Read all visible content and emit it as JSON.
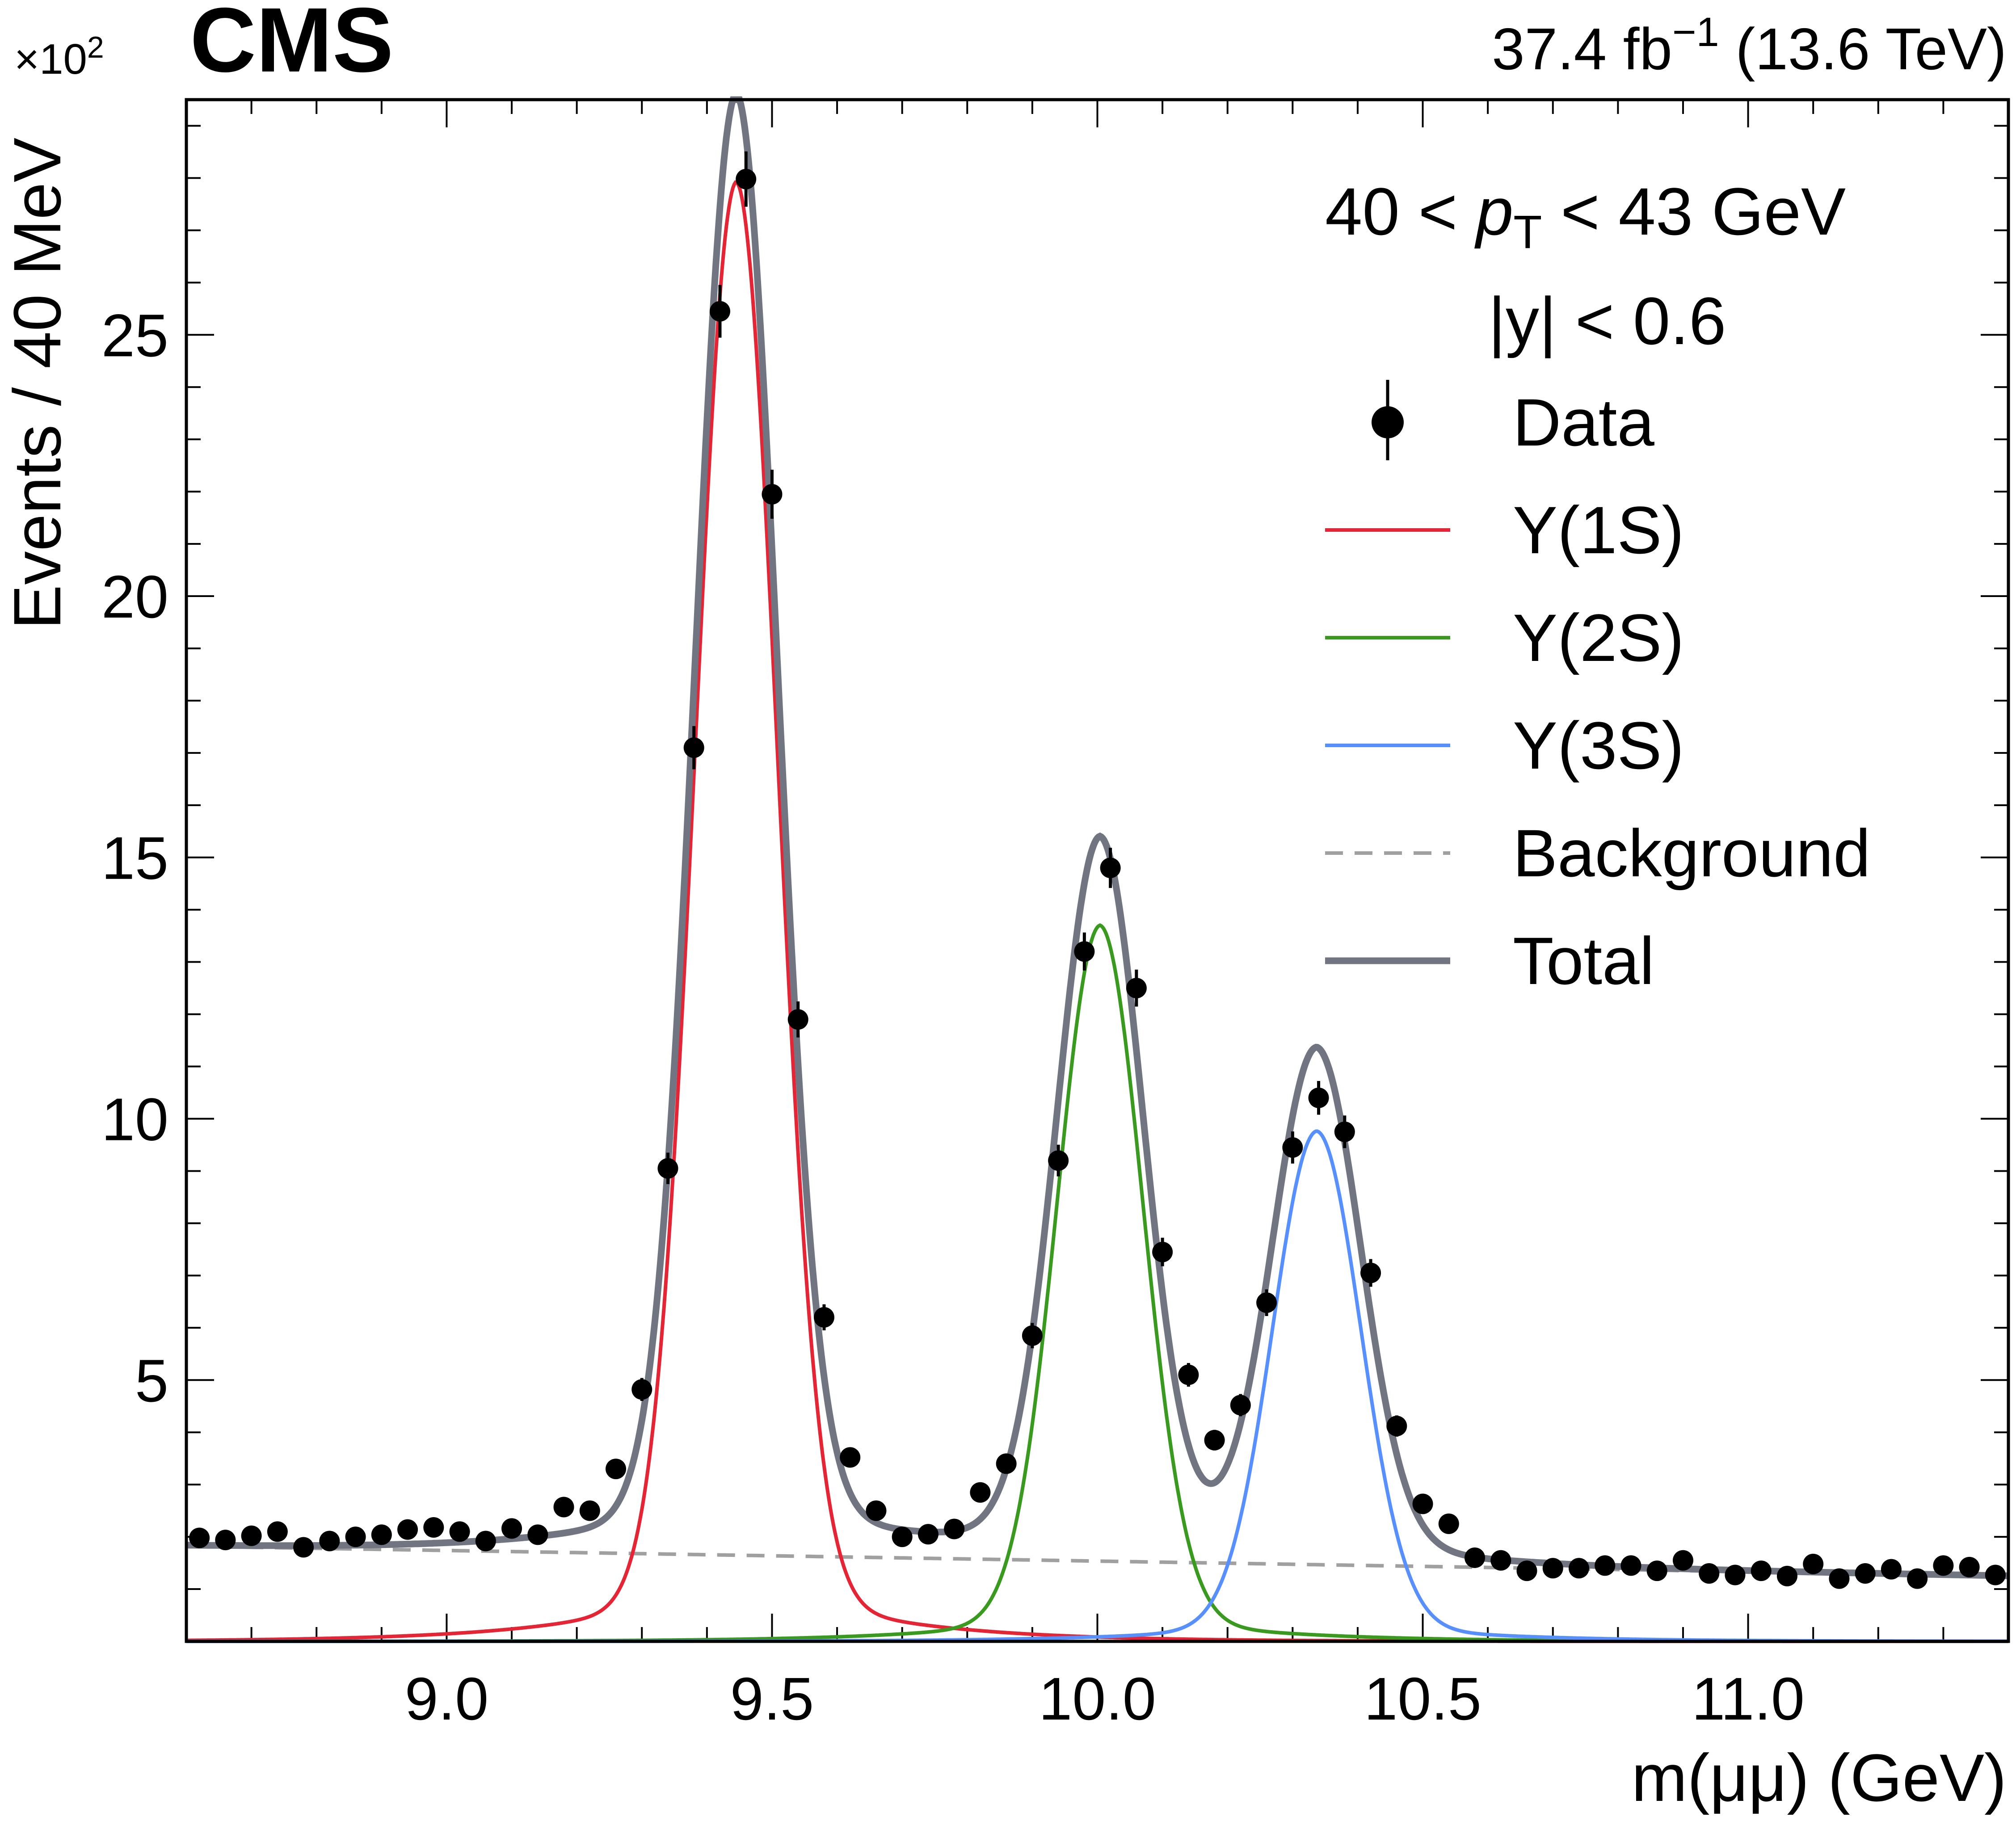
{
  "chart_data": {
    "type": "line",
    "experiment": "CMS",
    "lumi_label": "37.4 fb",
    "lumi_exp": "−1",
    "energy_label": "(13.6 TeV)",
    "multiplier_label": "×10",
    "multiplier_exp": "2",
    "xlabel": "m(μμ) (GeV)",
    "ylabel": "Events / 40 MeV",
    "xlim": [
      8.6,
      11.4
    ],
    "ylim": [
      0,
      29.5
    ],
    "xticks": [
      9.0,
      9.5,
      10.0,
      10.5,
      11.0
    ],
    "xtick_labels": [
      "9.0",
      "9.5",
      "10.0",
      "10.5",
      "11.0"
    ],
    "yticks": [
      5,
      10,
      15,
      20,
      25
    ],
    "ytick_labels": [
      "5",
      "10",
      "15",
      "20",
      "25"
    ],
    "selection": {
      "pt_prefix": "40 <",
      "pt_var": "p",
      "pt_sub": "T",
      "pt_suffix": "< 43 GeV",
      "y_cut": "|y| < 0.6"
    },
    "legend": [
      {
        "label": "Data",
        "style": "marker"
      },
      {
        "label": "Υ(1S)",
        "style": "line",
        "color": "#e42536"
      },
      {
        "label": "Υ(2S)",
        "style": "line",
        "color": "#3a9a1f"
      },
      {
        "label": "Υ(3S)",
        "style": "line",
        "color": "#5790fc"
      },
      {
        "label": "Background",
        "style": "dashed",
        "color": "#a0a0a0"
      },
      {
        "label": "Total",
        "style": "line",
        "color": "#717581"
      }
    ],
    "model": {
      "background": {
        "a": 1.82,
        "slope": -0.203,
        "x0": 8.6
      },
      "peaks": [
        {
          "name": "Υ(1S)",
          "mean": 9.445,
          "amplitude": 26.6,
          "sigma": 0.063,
          "tail": 0.05,
          "tail_width": 0.2,
          "color": "#e42536"
        },
        {
          "name": "Υ(2S)",
          "mean": 10.004,
          "amplitude": 13.05,
          "sigma": 0.066,
          "tail": 0.05,
          "tail_width": 0.2,
          "color": "#3a9a1f"
        },
        {
          "name": "Υ(3S)",
          "mean": 10.337,
          "amplitude": 9.3,
          "sigma": 0.068,
          "tail": 0.05,
          "tail_width": 0.2,
          "color": "#5790fc"
        }
      ]
    },
    "series": [
      {
        "name": "Data",
        "x": [
          8.62,
          8.66,
          8.7,
          8.74,
          8.78,
          8.82,
          8.86,
          8.9,
          8.94,
          8.98,
          9.02,
          9.06,
          9.1,
          9.14,
          9.18,
          9.22,
          9.26,
          9.3,
          9.34,
          9.38,
          9.42,
          9.46,
          9.5,
          9.54,
          9.58,
          9.62,
          9.66,
          9.7,
          9.74,
          9.78,
          9.82,
          9.86,
          9.9,
          9.94,
          9.98,
          10.02,
          10.06,
          10.1,
          10.14,
          10.18,
          10.22,
          10.26,
          10.3,
          10.34,
          10.38,
          10.42,
          10.46,
          10.5,
          10.54,
          10.58,
          10.62,
          10.66,
          10.7,
          10.74,
          10.78,
          10.82,
          10.86,
          10.9,
          10.94,
          10.98,
          11.02,
          11.06,
          11.1,
          11.14,
          11.18,
          11.22,
          11.26,
          11.3,
          11.34,
          11.38
        ],
        "y": [
          1.98,
          1.94,
          2.02,
          2.1,
          1.8,
          1.92,
          2.0,
          2.04,
          2.14,
          2.18,
          2.1,
          1.92,
          2.16,
          2.04,
          2.57,
          2.5,
          3.3,
          4.82,
          9.05,
          17.1,
          25.45,
          27.98,
          21.95,
          11.9,
          6.2,
          3.52,
          2.5,
          2.0,
          2.05,
          2.15,
          2.85,
          3.4,
          5.85,
          9.2,
          13.2,
          14.8,
          12.5,
          7.45,
          5.1,
          3.85,
          4.52,
          6.48,
          9.45,
          10.4,
          9.75,
          7.05,
          4.12,
          2.63,
          2.25,
          1.6,
          1.55,
          1.35,
          1.4,
          1.4,
          1.45,
          1.45,
          1.35,
          1.55,
          1.3,
          1.27,
          1.35,
          1.25,
          1.48,
          1.2,
          1.3,
          1.38,
          1.2,
          1.45,
          1.42,
          1.27
        ]
      }
    ]
  }
}
